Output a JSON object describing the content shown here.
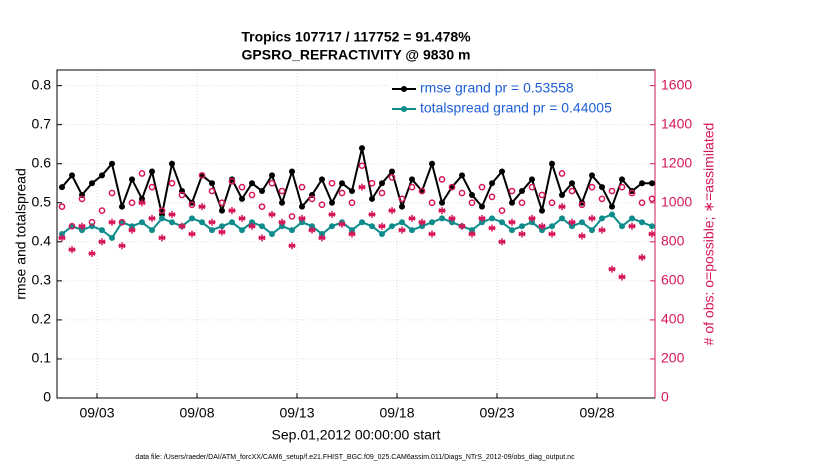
{
  "chart_data": {
    "type": "line",
    "title": "Tropics 107717 / 117752 = 91.478%",
    "subtitle": "GPSRO_REFRACTIVITY @ 9830 m",
    "xlabel": "Sep.01,2012 00:00:00 start",
    "ylabel": "rmse and totalspread",
    "y2label": "# of obs: o=possible; ∗=assimilated",
    "footnote": "data file: /Users/raeder/DAI/ATM_forcXX/CAM6_setup/f.e21.FHIST_BGC.f09_025.CAM6assim.011/Diags_NTrS_2012-09/obs_diag_output.nc",
    "grid": true,
    "xlim": [
      0,
      29.9
    ],
    "xticks": [
      {
        "value": 2,
        "label": "09/03"
      },
      {
        "value": 7,
        "label": "09/08"
      },
      {
        "value": 12,
        "label": "09/13"
      },
      {
        "value": 17,
        "label": "09/18"
      },
      {
        "value": 22,
        "label": "09/23"
      },
      {
        "value": 27,
        "label": "09/28"
      }
    ],
    "ylim": [
      0,
      0.84
    ],
    "yticks": [
      0,
      0.1,
      0.2,
      0.3,
      0.4,
      0.5,
      0.6,
      0.7,
      0.8
    ],
    "y2lim": [
      0,
      1680
    ],
    "y2ticks": [
      0,
      200,
      400,
      600,
      800,
      1000,
      1200,
      1400,
      1600
    ],
    "x": [
      0.25,
      0.75,
      1.25,
      1.75,
      2.25,
      2.75,
      3.25,
      3.75,
      4.25,
      4.75,
      5.25,
      5.75,
      6.25,
      6.75,
      7.25,
      7.75,
      8.25,
      8.75,
      9.25,
      9.75,
      10.25,
      10.75,
      11.25,
      11.75,
      12.25,
      12.75,
      13.25,
      13.75,
      14.25,
      14.75,
      15.25,
      15.75,
      16.25,
      16.75,
      17.25,
      17.75,
      18.25,
      18.75,
      19.25,
      19.75,
      20.25,
      20.75,
      21.25,
      21.75,
      22.25,
      22.75,
      23.25,
      23.75,
      24.25,
      24.75,
      25.25,
      25.75,
      26.25,
      26.75,
      27.25,
      27.75,
      28.25,
      28.75,
      29.25,
      29.75
    ],
    "series": [
      {
        "name": "rmse grand pr = 0.53558",
        "color": "#000000",
        "marker": "dot-line",
        "values": [
          0.54,
          0.57,
          0.52,
          0.55,
          0.57,
          0.6,
          0.49,
          0.56,
          0.51,
          0.58,
          0.47,
          0.6,
          0.53,
          0.5,
          0.57,
          0.55,
          0.48,
          0.56,
          0.51,
          0.55,
          0.53,
          0.57,
          0.5,
          0.58,
          0.49,
          0.52,
          0.56,
          0.5,
          0.55,
          0.53,
          0.64,
          0.51,
          0.55,
          0.58,
          0.49,
          0.56,
          0.53,
          0.6,
          0.5,
          0.54,
          0.57,
          0.52,
          0.49,
          0.55,
          0.58,
          0.5,
          0.53,
          0.56,
          0.48,
          0.6,
          0.52,
          0.55,
          0.5,
          0.57,
          0.54,
          0.49,
          0.56,
          0.53,
          0.55,
          0.55
        ]
      },
      {
        "name": "totalspread grand pr = 0.44005",
        "color": "#0e8c8c",
        "marker": "dot-line",
        "values": [
          0.42,
          0.44,
          0.43,
          0.44,
          0.43,
          0.41,
          0.45,
          0.44,
          0.45,
          0.43,
          0.46,
          0.45,
          0.44,
          0.46,
          0.45,
          0.43,
          0.44,
          0.45,
          0.43,
          0.45,
          0.44,
          0.42,
          0.44,
          0.43,
          0.45,
          0.44,
          0.42,
          0.44,
          0.45,
          0.43,
          0.45,
          0.44,
          0.42,
          0.44,
          0.45,
          0.43,
          0.44,
          0.45,
          0.46,
          0.45,
          0.44,
          0.43,
          0.45,
          0.46,
          0.45,
          0.43,
          0.44,
          0.45,
          0.43,
          0.44,
          0.46,
          0.44,
          0.45,
          0.43,
          0.46,
          0.47,
          0.44,
          0.46,
          0.45,
          0.44
        ]
      },
      {
        "color": "#d6175a",
        "axis": "y2",
        "marker": "circle",
        "values": [
          980,
          880,
          1020,
          900,
          960,
          1050,
          900,
          1000,
          1150,
          1080,
          960,
          1100,
          1040,
          990,
          1140,
          1060,
          1000,
          1110,
          1080,
          1040,
          980,
          1100,
          1060,
          930,
          1080,
          1020,
          990,
          1100,
          1050,
          1000,
          1190,
          1100,
          1050,
          1130,
          1020,
          1080,
          1060,
          1000,
          1120,
          1080,
          1050,
          1000,
          1080,
          1030,
          960,
          1060,
          1000,
          1080,
          1040,
          1000,
          1150,
          1060,
          990,
          1080,
          1020,
          1060,
          1080,
          1050,
          1000,
          1020
        ]
      },
      {
        "color": "#d6175a",
        "axis": "y2",
        "marker": "asterisk",
        "values": [
          820,
          760,
          880,
          740,
          800,
          900,
          780,
          860,
          1000,
          920,
          820,
          940,
          880,
          840,
          980,
          900,
          850,
          960,
          920,
          880,
          820,
          940,
          900,
          780,
          920,
          860,
          820,
          940,
          890,
          840,
          1080,
          940,
          880,
          960,
          860,
          920,
          900,
          840,
          960,
          920,
          880,
          840,
          920,
          870,
          800,
          900,
          840,
          920,
          880,
          840,
          980,
          900,
          830,
          920,
          860,
          660,
          620,
          880,
          720,
          840
        ]
      }
    ]
  }
}
